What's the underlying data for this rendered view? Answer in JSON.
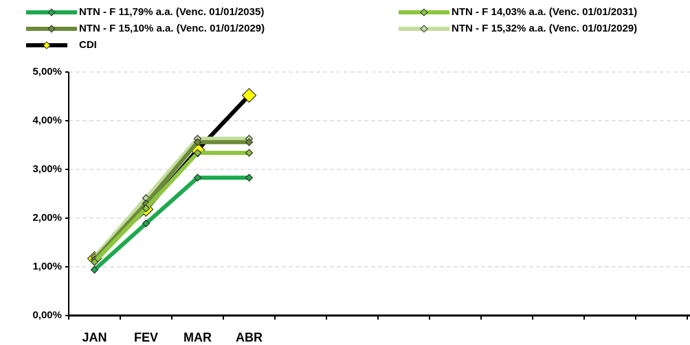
{
  "chart_data": {
    "type": "line",
    "categories": [
      "JAN",
      "FEV",
      "MAR",
      "ABR",
      null,
      null,
      null,
      null,
      null,
      null,
      null,
      null
    ],
    "series": [
      {
        "name": "NTN - F 11,79% a.a. (Venc. 01/01/2035)",
        "color": "#1fa84f",
        "values": [
          0.94,
          1.89,
          2.83,
          2.83,
          null,
          null,
          null,
          null,
          null,
          null,
          null,
          null
        ]
      },
      {
        "name": "NTN - F 14,03% a.a. (Venc. 01/01/2031)",
        "color": "#8dc63f",
        "values": [
          1.1,
          2.2,
          3.34,
          3.34,
          null,
          null,
          null,
          null,
          null,
          null,
          null,
          null
        ]
      },
      {
        "name": "NTN - F 15,10% a.a. (Venc. 01/01/2029)",
        "color": "#6b8a3a",
        "values": [
          1.15,
          2.3,
          3.56,
          3.56,
          null,
          null,
          null,
          null,
          null,
          null,
          null,
          null
        ]
      },
      {
        "name": "NTN - F 15,32% a.a. (Venc. 01/01/2029)",
        "color": "#c4dd9f",
        "values": [
          1.2,
          2.41,
          3.63,
          3.63,
          null,
          null,
          null,
          null,
          null,
          null,
          null,
          null
        ]
      },
      {
        "name": "CDI",
        "color": "#000000",
        "marker_color": "#ffff00",
        "values": [
          1.17,
          2.18,
          3.4,
          4.52,
          null,
          null,
          null,
          null,
          null,
          null,
          null,
          null
        ]
      }
    ],
    "ylim": [
      0,
      5
    ],
    "yticks": [
      {
        "value": 0,
        "label": "0,00%"
      },
      {
        "value": 1,
        "label": "1,00%"
      },
      {
        "value": 2,
        "label": "2,00%"
      },
      {
        "value": 3,
        "label": "3,00%"
      },
      {
        "value": 4,
        "label": "4,00%"
      },
      {
        "value": 5,
        "label": "5,00%"
      }
    ],
    "grid": true
  }
}
